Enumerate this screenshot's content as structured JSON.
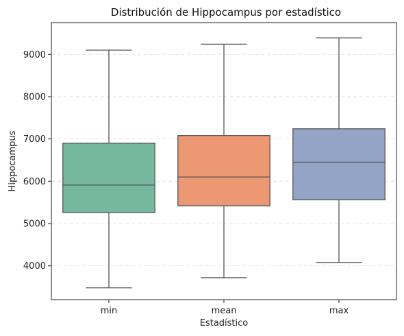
{
  "chart_data": {
    "type": "boxplot",
    "title": "Distribución de Hippocampus por estadístico",
    "xlabel": "Estadístico",
    "ylabel": "Hippocampus",
    "ylim": [
      3200,
      9750
    ],
    "yticks": [
      4000,
      5000,
      6000,
      7000,
      8000,
      9000
    ],
    "grid": "y-dashed",
    "categories": [
      "min",
      "mean",
      "max"
    ],
    "series": [
      {
        "category": "min",
        "whisker_low": 3480,
        "q1": 5260,
        "median": 5910,
        "q3": 6900,
        "whisker_high": 9100,
        "color": "#76b7a0"
      },
      {
        "category": "mean",
        "whisker_low": 3720,
        "q1": 5420,
        "median": 6100,
        "q3": 7080,
        "whisker_high": 9240,
        "color": "#eb9873"
      },
      {
        "category": "max",
        "whisker_low": 4080,
        "q1": 5560,
        "median": 6450,
        "q3": 7240,
        "whisker_high": 9390,
        "color": "#94a4c6"
      }
    ]
  }
}
